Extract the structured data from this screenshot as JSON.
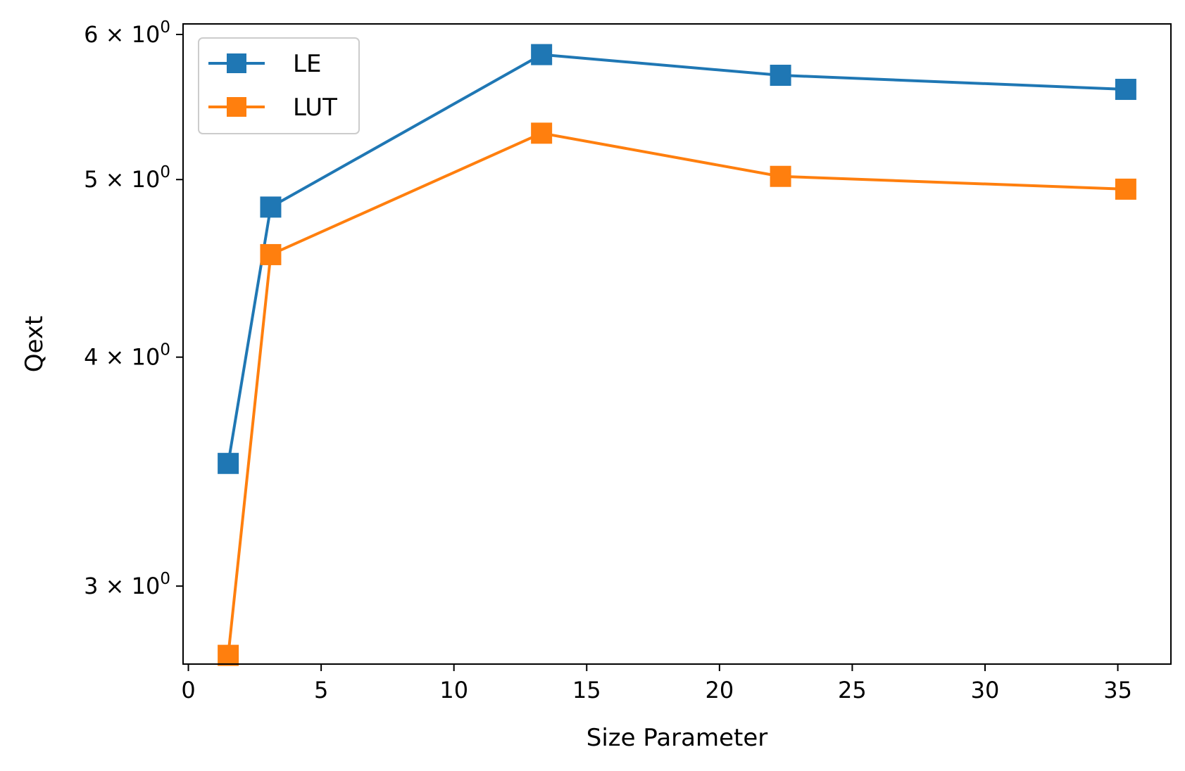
{
  "chart_data": {
    "type": "line",
    "xlabel": "Size Parameter",
    "ylabel": "Qext",
    "xlim": [
      -0.2,
      37.0
    ],
    "ylim": [
      2.72,
      6.08
    ],
    "yscale": "log",
    "x_ticks": [
      0,
      5,
      10,
      15,
      20,
      25,
      30,
      35
    ],
    "x_tick_labels": [
      "0",
      "5",
      "10",
      "15",
      "20",
      "25",
      "30",
      "35"
    ],
    "y_ticks": [
      3,
      4,
      5,
      6
    ],
    "y_tick_labels": [
      {
        "mantissa": "3",
        "times": "×",
        "base": "10",
        "exp": "0"
      },
      {
        "mantissa": "4",
        "times": "×",
        "base": "10",
        "exp": "0"
      },
      {
        "mantissa": "5",
        "times": "×",
        "base": "10",
        "exp": "0"
      },
      {
        "mantissa": "6",
        "times": "×",
        "base": "10",
        "exp": "0"
      }
    ],
    "x": [
      1.5,
      3.1,
      13.3,
      22.3,
      35.3
    ],
    "series": [
      {
        "name": "LE",
        "color": "#1f77b4",
        "marker": "square",
        "values": [
          3.5,
          4.83,
          5.85,
          5.7,
          5.6
        ]
      },
      {
        "name": "LUT",
        "color": "#ff7f0e",
        "marker": "square",
        "values": [
          2.75,
          4.55,
          5.3,
          5.02,
          4.94
        ]
      }
    ],
    "grid": false,
    "legend_position": "upper-left"
  }
}
